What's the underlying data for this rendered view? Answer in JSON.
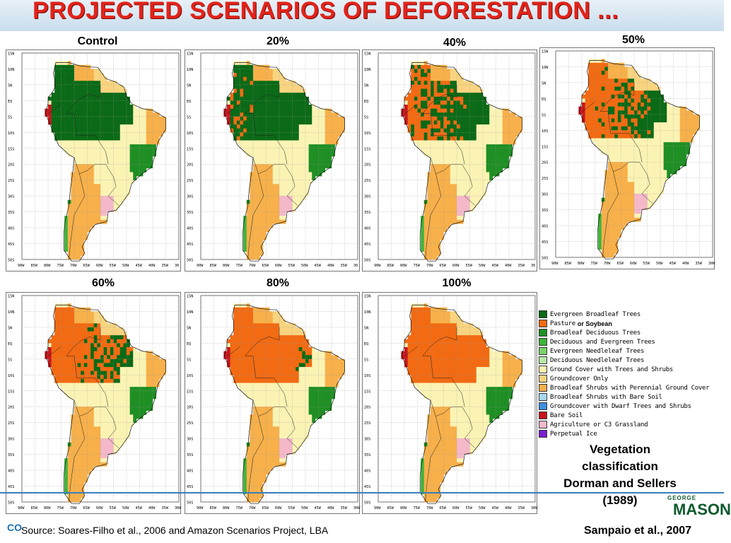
{
  "title": "PROJECTED SCENARIOS OF DEFORESTATION ...",
  "panels": [
    {
      "label": "Control",
      "deforestation": 0.0
    },
    {
      "label": "20%",
      "deforestation": 0.2
    },
    {
      "label": "40%",
      "deforestation": 0.4
    },
    {
      "label": "50%",
      "deforestation": 0.5
    },
    {
      "label": "60%",
      "deforestation": 0.6
    },
    {
      "label": "80%",
      "deforestation": 0.8
    },
    {
      "label": "100%",
      "deforestation": 1.0
    }
  ],
  "lat_ticks": [
    "15N",
    "10N",
    "5N",
    "EQ",
    "5S",
    "10S",
    "15S",
    "20S",
    "25S",
    "30S",
    "35S",
    "40S",
    "45S",
    "50S"
  ],
  "lon_ticks": [
    "90W",
    "85W",
    "80W",
    "75W",
    "70W",
    "65W",
    "60W",
    "55W",
    "50W",
    "45W",
    "40W",
    "35W",
    "30"
  ],
  "lon_ticks_alt": [
    "90W",
    "85W",
    "80W",
    "75W",
    "70W",
    "65W",
    "60W",
    "55W",
    "50W",
    "45W",
    "40W",
    "35W",
    "30W"
  ],
  "legend": [
    {
      "label": "Evergreen Broadleaf Trees",
      "color": "#0b6a17"
    },
    {
      "label": "Pasture",
      "color": "#f26a12",
      "note": "or Soybean"
    },
    {
      "label": "Broadleaf Deciduous Trees",
      "color": "#1f8f24"
    },
    {
      "label": "Deciduous and Evergreen Trees",
      "color": "#3db43a"
    },
    {
      "label": "Evergreen Needleleaf Trees",
      "color": "#7ad36b"
    },
    {
      "label": "Deciduous Needleleaf Trees",
      "color": "#b8e8a8"
    },
    {
      "label": "Ground Cover with Trees and Shrubs",
      "color": "#fbf3b4"
    },
    {
      "label": "Groundcover Only",
      "color": "#f8d480"
    },
    {
      "label": "Broadleaf Shrubs with Perennial Ground Cover",
      "color": "#f7b04a"
    },
    {
      "label": "Broadleaf Shrubs with Bare Soil",
      "color": "#a8d8f0"
    },
    {
      "label": "Groundcover with Dwarf Trees and Shrubs",
      "color": "#3f8fe0"
    },
    {
      "label": "Bare Soil",
      "color": "#c8141b"
    },
    {
      "label": "Agriculture or C3 Grassland",
      "color": "#f4b8c8"
    },
    {
      "label": "Perpetual Ice",
      "color": "#7a1fd0"
    }
  ],
  "veg_caption": [
    "Vegetation",
    "classification",
    "Dorman and Sellers",
    "(1989)"
  ],
  "source": "Source: Soares-Filho et al., 2006 and  Amazon Scenarios Project, LBA",
  "citation": "Sampaio et al., 2007",
  "logo_left": "CO",
  "logo_right_small": "GEORGE",
  "logo_right_big": "MASON"
}
